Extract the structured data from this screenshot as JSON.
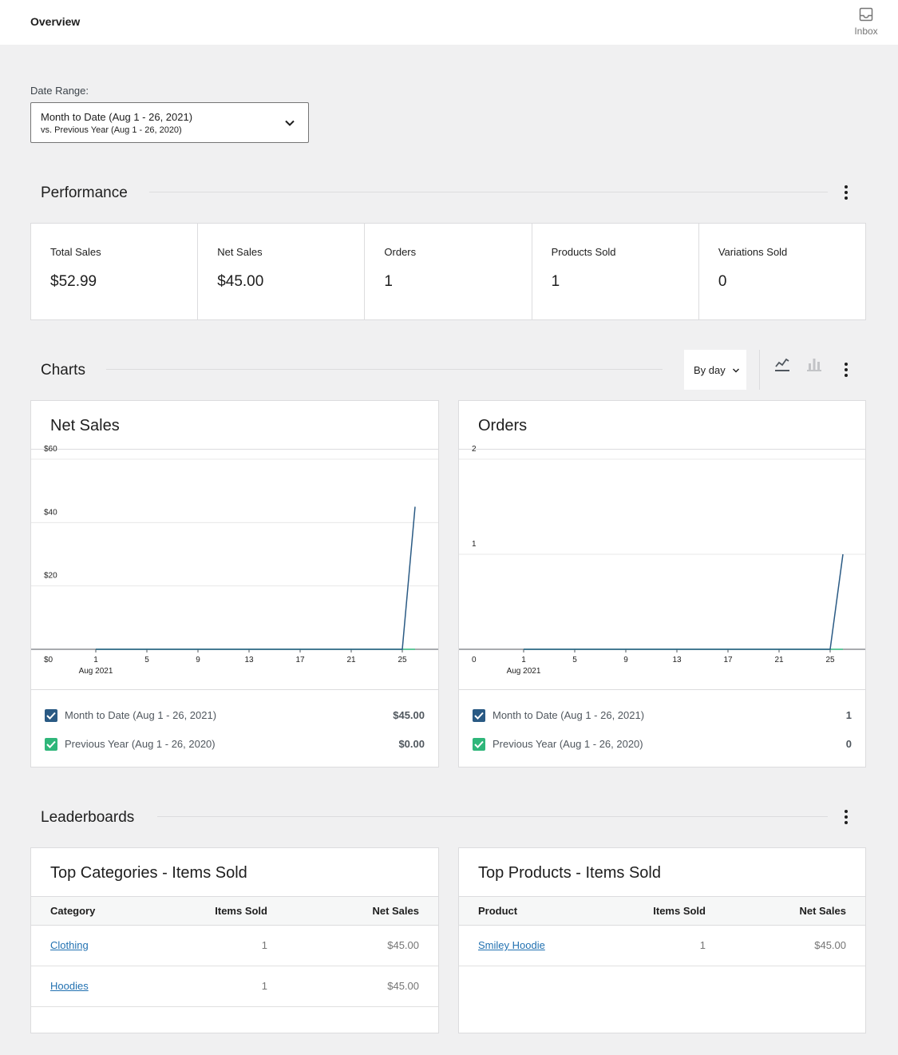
{
  "header": {
    "title": "Overview",
    "inbox_label": "Inbox"
  },
  "date_range": {
    "label": "Date Range:",
    "primary": "Month to Date (Aug 1 - 26, 2021)",
    "secondary": "vs. Previous Year (Aug 1 - 26, 2020)"
  },
  "performance": {
    "title": "Performance",
    "stats": [
      {
        "label": "Total Sales",
        "value": "$52.99"
      },
      {
        "label": "Net Sales",
        "value": "$45.00"
      },
      {
        "label": "Orders",
        "value": "1"
      },
      {
        "label": "Products Sold",
        "value": "1"
      },
      {
        "label": "Variations Sold",
        "value": "0"
      }
    ]
  },
  "charts_section": {
    "title": "Charts",
    "interval": "By day"
  },
  "colors": {
    "current": "#2a5a84",
    "previous": "#2fb67a",
    "link": "#2271b1"
  },
  "charts": [
    {
      "title": "Net Sales",
      "legend": [
        {
          "name": "Month to Date (Aug 1 - 26, 2021)",
          "value": "$45.00"
        },
        {
          "name": "Previous Year (Aug 1 - 26, 2020)",
          "value": "$0.00"
        }
      ]
    },
    {
      "title": "Orders",
      "legend": [
        {
          "name": "Month to Date (Aug 1 - 26, 2021)",
          "value": "1"
        },
        {
          "name": "Previous Year (Aug 1 - 26, 2020)",
          "value": "0"
        }
      ]
    }
  ],
  "chart_data": [
    {
      "type": "line",
      "title": "Net Sales",
      "x": [
        1,
        2,
        3,
        4,
        5,
        6,
        7,
        8,
        9,
        10,
        11,
        12,
        13,
        14,
        15,
        16,
        17,
        18,
        19,
        20,
        21,
        22,
        23,
        24,
        25,
        26
      ],
      "x_ticks": [
        "1",
        "5",
        "9",
        "13",
        "17",
        "21",
        "25"
      ],
      "x_sublabel": "Aug 2021",
      "y_ticks": [
        "$0",
        "$20",
        "$40",
        "$60"
      ],
      "ylim": [
        0,
        60
      ],
      "series": [
        {
          "name": "Month to Date (Aug 1 - 26, 2021)",
          "values": [
            0,
            0,
            0,
            0,
            0,
            0,
            0,
            0,
            0,
            0,
            0,
            0,
            0,
            0,
            0,
            0,
            0,
            0,
            0,
            0,
            0,
            0,
            0,
            0,
            0,
            45
          ]
        },
        {
          "name": "Previous Year (Aug 1 - 26, 2020)",
          "values": [
            0,
            0,
            0,
            0,
            0,
            0,
            0,
            0,
            0,
            0,
            0,
            0,
            0,
            0,
            0,
            0,
            0,
            0,
            0,
            0,
            0,
            0,
            0,
            0,
            0,
            0
          ]
        }
      ]
    },
    {
      "type": "line",
      "title": "Orders",
      "x": [
        1,
        2,
        3,
        4,
        5,
        6,
        7,
        8,
        9,
        10,
        11,
        12,
        13,
        14,
        15,
        16,
        17,
        18,
        19,
        20,
        21,
        22,
        23,
        24,
        25,
        26
      ],
      "x_ticks": [
        "1",
        "5",
        "9",
        "13",
        "17",
        "21",
        "25"
      ],
      "x_sublabel": "Aug 2021",
      "y_ticks": [
        "0",
        "1",
        "2"
      ],
      "ylim": [
        0,
        2
      ],
      "series": [
        {
          "name": "Month to Date (Aug 1 - 26, 2021)",
          "values": [
            0,
            0,
            0,
            0,
            0,
            0,
            0,
            0,
            0,
            0,
            0,
            0,
            0,
            0,
            0,
            0,
            0,
            0,
            0,
            0,
            0,
            0,
            0,
            0,
            0,
            1
          ]
        },
        {
          "name": "Previous Year (Aug 1 - 26, 2020)",
          "values": [
            0,
            0,
            0,
            0,
            0,
            0,
            0,
            0,
            0,
            0,
            0,
            0,
            0,
            0,
            0,
            0,
            0,
            0,
            0,
            0,
            0,
            0,
            0,
            0,
            0,
            0
          ]
        }
      ]
    }
  ],
  "leaderboards": {
    "title": "Leaderboards",
    "boards": [
      {
        "title": "Top Categories - Items Sold",
        "columns": [
          "Category",
          "Items Sold",
          "Net Sales"
        ],
        "rows": [
          [
            "Clothing",
            "1",
            "$45.00"
          ],
          [
            "Hoodies",
            "1",
            "$45.00"
          ]
        ]
      },
      {
        "title": "Top Products - Items Sold",
        "columns": [
          "Product",
          "Items Sold",
          "Net Sales"
        ],
        "rows": [
          [
            "Smiley Hoodie",
            "1",
            "$45.00"
          ]
        ]
      }
    ]
  }
}
